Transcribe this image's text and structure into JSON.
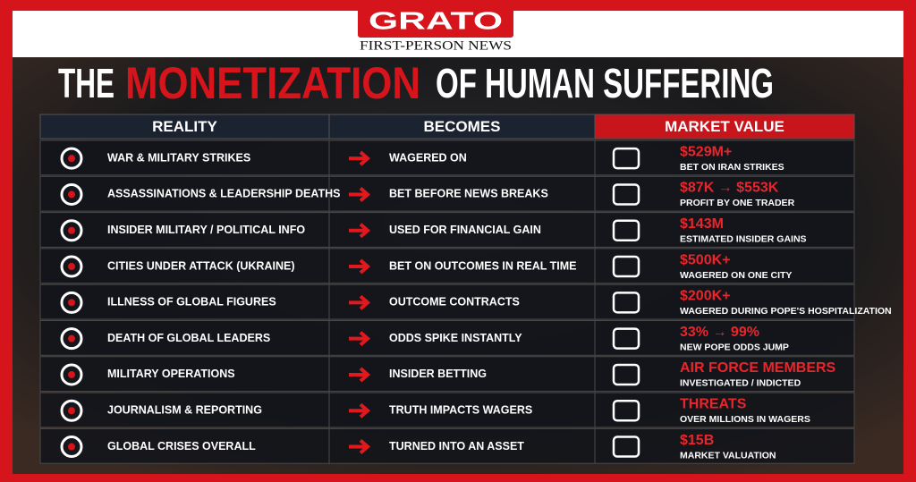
{
  "header": {
    "logo": "GRATO",
    "tagline": "FIRST-PERSON NEWS"
  },
  "title": {
    "lead": "THE",
    "highlight": "MONETIZATION",
    "rest": "OF HUMAN SUFFERING"
  },
  "table": {
    "columns": [
      "REALITY",
      "BECOMES",
      "MARKET VALUE"
    ],
    "rows": [
      {
        "reality": "WAR & MILITARY STRIKES",
        "becomes": "WAGERED ON",
        "value": "$529M+",
        "note": "BET ON IRAN STRIKES"
      },
      {
        "reality": "ASSASSINATIONS & LEADERSHIP DEATHS",
        "becomes": "BET BEFORE NEWS BREAKS",
        "value": "$87K → $553K",
        "note": "PROFIT BY ONE TRADER"
      },
      {
        "reality": "INSIDER MILITARY / POLITICAL INFO",
        "becomes": "USED FOR FINANCIAL GAIN",
        "value": "$143M",
        "note": "ESTIMATED INSIDER GAINS"
      },
      {
        "reality": "CITIES UNDER ATTACK (UKRAINE)",
        "becomes": "BET ON OUTCOMES IN REAL TIME",
        "value": "$500K+",
        "note": "WAGERED ON ONE CITY"
      },
      {
        "reality": "ILLNESS OF GLOBAL FIGURES",
        "becomes": "OUTCOME CONTRACTS",
        "value": "$200K+",
        "note": "WAGERED DURING POPE'S HOSPITALIZATION"
      },
      {
        "reality": "DEATH OF GLOBAL LEADERS",
        "becomes": "ODDS SPIKE INSTANTLY",
        "value": "33% → 99%",
        "note": "NEW POPE ODDS JUMP"
      },
      {
        "reality": "MILITARY OPERATIONS",
        "becomes": "INSIDER BETTING",
        "value": "AIR FORCE MEMBERS",
        "note": "INVESTIGATED / INDICTED"
      },
      {
        "reality": "JOURNALISM & REPORTING",
        "becomes": "TRUTH IMPACTS WAGERS",
        "value": "THREATS",
        "note": "OVER MILLIONS IN WAGERS"
      },
      {
        "reality": "GLOBAL CRISES OVERALL",
        "becomes": "TURNED INTO AN ASSET",
        "value": "$15B",
        "note": "MARKET VALUATION"
      }
    ]
  }
}
